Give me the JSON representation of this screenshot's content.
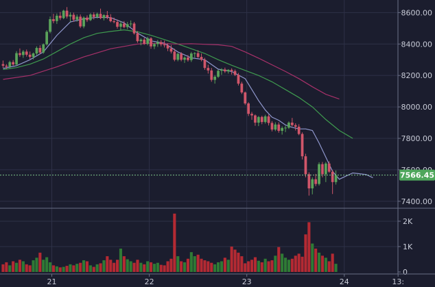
{
  "colors": {
    "background": "#1b1d2e",
    "grid": "#2e3147",
    "axis": "#6a6f86",
    "bull": "#5aa35a",
    "bear": "#d0566a",
    "bull_volume": "#2f7a35",
    "bear_volume": "#b42a33",
    "ma_fast": "#8f97cc",
    "ma_mid": "#3f9b4f",
    "ma_slow": "#a8316a",
    "last_price_bg": "#4ea65b",
    "last_price_line": "#7fc88a"
  },
  "chart_data": {
    "type": "candlestick",
    "price_axis": {
      "ylim": [
        7360,
        8680
      ],
      "ticks": [
        7400,
        7600,
        7800,
        8000,
        8200,
        8400,
        8600
      ],
      "tick_labels": [
        "7400.00",
        "7600.00",
        "7800.00",
        "8000.00",
        "8200.00",
        "8400.00",
        "8600.00"
      ]
    },
    "volume_axis": {
      "ylim": [
        0,
        2350
      ],
      "ticks": [
        0,
        1000,
        2000
      ],
      "tick_labels": [
        "0",
        "1K",
        "2K"
      ]
    },
    "time_axis": {
      "xlim": [
        0,
        118
      ],
      "ticks": [
        14.5,
        43.5,
        72.5,
        101.5,
        117.5
      ],
      "tick_labels": [
        "21",
        "22",
        "23",
        "24",
        "13:"
      ]
    },
    "last_price": {
      "value": 7566.45,
      "label": "7566.45"
    },
    "candles": [
      [
        8272,
        8295,
        8248,
        8262
      ],
      [
        8262,
        8272,
        8242,
        8256
      ],
      [
        8256,
        8294,
        8246,
        8285
      ],
      [
        8285,
        8298,
        8262,
        8270
      ],
      [
        8270,
        8355,
        8262,
        8342
      ],
      [
        8342,
        8372,
        8318,
        8330
      ],
      [
        8330,
        8362,
        8312,
        8352
      ],
      [
        8352,
        8365,
        8320,
        8332
      ],
      [
        8332,
        8352,
        8305,
        8318
      ],
      [
        8318,
        8346,
        8302,
        8340
      ],
      [
        8340,
        8385,
        8330,
        8375
      ],
      [
        8375,
        8392,
        8338,
        8346
      ],
      [
        8346,
        8404,
        8338,
        8398
      ],
      [
        8398,
        8488,
        8390,
        8478
      ],
      [
        8478,
        8575,
        8468,
        8558
      ],
      [
        8558,
        8592,
        8532,
        8546
      ],
      [
        8546,
        8594,
        8528,
        8580
      ],
      [
        8580,
        8604,
        8552,
        8565
      ],
      [
        8565,
        8618,
        8558,
        8612
      ],
      [
        8612,
        8635,
        8562,
        8575
      ],
      [
        8575,
        8602,
        8540,
        8586
      ],
      [
        8586,
        8600,
        8542,
        8555
      ],
      [
        8555,
        8588,
        8542,
        8574
      ],
      [
        8574,
        8588,
        8502,
        8512
      ],
      [
        8512,
        8576,
        8500,
        8568
      ],
      [
        8568,
        8582,
        8540,
        8552
      ],
      [
        8552,
        8596,
        8546,
        8588
      ],
      [
        8588,
        8602,
        8556,
        8572
      ],
      [
        8572,
        8600,
        8562,
        8592
      ],
      [
        8592,
        8625,
        8558,
        8565
      ],
      [
        8565,
        8590,
        8550,
        8584
      ],
      [
        8584,
        8610,
        8558,
        8570
      ],
      [
        8570,
        8590,
        8538,
        8545
      ],
      [
        8545,
        8568,
        8532,
        8540
      ],
      [
        8540,
        8556,
        8498,
        8510
      ],
      [
        8510,
        8544,
        8488,
        8530
      ],
      [
        8530,
        8546,
        8500,
        8508
      ],
      [
        8508,
        8540,
        8494,
        8526
      ],
      [
        8526,
        8550,
        8510,
        8530
      ],
      [
        8530,
        8540,
        8460,
        8468
      ],
      [
        8468,
        8482,
        8408,
        8418
      ],
      [
        8418,
        8436,
        8392,
        8428
      ],
      [
        8428,
        8440,
        8395,
        8402
      ],
      [
        8402,
        8446,
        8392,
        8436
      ],
      [
        8436,
        8444,
        8370,
        8385
      ],
      [
        8385,
        8408,
        8368,
        8400
      ],
      [
        8400,
        8426,
        8382,
        8412
      ],
      [
        8412,
        8425,
        8385,
        8398
      ],
      [
        8398,
        8422,
        8378,
        8392
      ],
      [
        8392,
        8405,
        8355,
        8372
      ],
      [
        8372,
        8394,
        8340,
        8352
      ],
      [
        8352,
        8370,
        8290,
        8300
      ],
      [
        8300,
        8344,
        8290,
        8338
      ],
      [
        8338,
        8348,
        8290,
        8300
      ],
      [
        8300,
        8322,
        8280,
        8314
      ],
      [
        8314,
        8330,
        8288,
        8298
      ],
      [
        8298,
        8350,
        8286,
        8340
      ],
      [
        8340,
        8348,
        8314,
        8342
      ],
      [
        8342,
        8360,
        8310,
        8318
      ],
      [
        8318,
        8340,
        8290,
        8300
      ],
      [
        8300,
        8312,
        8236,
        8248
      ],
      [
        8248,
        8268,
        8212,
        8232
      ],
      [
        8232,
        8248,
        8160,
        8172
      ],
      [
        8172,
        8202,
        8148,
        8192
      ],
      [
        8192,
        8238,
        8184,
        8230
      ],
      [
        8230,
        8246,
        8204,
        8238
      ],
      [
        8238,
        8250,
        8216,
        8226
      ],
      [
        8226,
        8240,
        8212,
        8236
      ],
      [
        8236,
        8246,
        8206,
        8228
      ],
      [
        8228,
        8238,
        8196,
        8204
      ],
      [
        8204,
        8216,
        8136,
        8148
      ],
      [
        8148,
        8160,
        8082,
        8092
      ],
      [
        8092,
        8098,
        8012,
        8022
      ],
      [
        8022,
        8030,
        7942,
        7956
      ],
      [
        7956,
        7968,
        7918,
        7946
      ],
      [
        7946,
        7952,
        7880,
        7900
      ],
      [
        7900,
        7942,
        7878,
        7936
      ],
      [
        7936,
        7944,
        7890,
        7904
      ],
      [
        7904,
        7950,
        7894,
        7940
      ],
      [
        7940,
        7952,
        7882,
        7898
      ],
      [
        7898,
        7910,
        7844,
        7856
      ],
      [
        7856,
        7902,
        7846,
        7888
      ],
      [
        7888,
        7902,
        7836,
        7848
      ],
      [
        7848,
        7876,
        7824,
        7866
      ],
      [
        7866,
        7880,
        7840,
        7868
      ],
      [
        7868,
        7908,
        7860,
        7900
      ],
      [
        7900,
        7930,
        7876,
        7884
      ],
      [
        7884,
        7896,
        7850,
        7874
      ],
      [
        7874,
        7890,
        7820,
        7828
      ],
      [
        7828,
        7838,
        7666,
        7686
      ],
      [
        7686,
        7702,
        7552,
        7572
      ],
      [
        7572,
        7584,
        7436,
        7482
      ],
      [
        7482,
        7552,
        7444,
        7540
      ],
      [
        7540,
        7574,
        7496,
        7510
      ],
      [
        7510,
        7648,
        7500,
        7636
      ],
      [
        7636,
        7650,
        7552,
        7572
      ],
      [
        7572,
        7650,
        7522,
        7640
      ],
      [
        7640,
        7654,
        7580,
        7588
      ],
      [
        7588,
        7600,
        7446,
        7522
      ],
      [
        7522,
        7596,
        7506,
        7566.45
      ]
    ],
    "volume": [
      300,
      380,
      260,
      420,
      360,
      480,
      420,
      300,
      260,
      460,
      560,
      760,
      480,
      580,
      380,
      260,
      220,
      180,
      200,
      240,
      300,
      260,
      320,
      360,
      460,
      420,
      260,
      200,
      300,
      340,
      460,
      620,
      480,
      360,
      480,
      920,
      620,
      500,
      420,
      360,
      480,
      360,
      300,
      420,
      380,
      320,
      360,
      280,
      260,
      420,
      520,
      2300,
      620,
      420,
      380,
      520,
      780,
      620,
      680,
      520,
      460,
      420,
      360,
      300,
      380,
      420,
      560,
      480,
      1000,
      880,
      760,
      620,
      340,
      420,
      480,
      580,
      440,
      380,
      520,
      420,
      460,
      640,
      980,
      720,
      560,
      480,
      520,
      640,
      720,
      600,
      1480,
      1960,
      1120,
      920,
      760,
      640,
      560,
      420,
      720,
      320
    ],
    "ma_fast": [
      [
        0,
        8245
      ],
      [
        4,
        8262
      ],
      [
        8,
        8300
      ],
      [
        12,
        8350
      ],
      [
        16,
        8455
      ],
      [
        20,
        8540
      ],
      [
        24,
        8560
      ],
      [
        28,
        8570
      ],
      [
        32,
        8568
      ],
      [
        36,
        8535
      ],
      [
        40,
        8470
      ],
      [
        44,
        8420
      ],
      [
        48,
        8405
      ],
      [
        52,
        8350
      ],
      [
        56,
        8312
      ],
      [
        60,
        8300
      ],
      [
        64,
        8240
      ],
      [
        68,
        8225
      ],
      [
        72,
        8180
      ],
      [
        74,
        8110
      ],
      [
        76,
        8040
      ],
      [
        78,
        7980
      ],
      [
        80,
        7935
      ],
      [
        82,
        7915
      ],
      [
        84,
        7885
      ],
      [
        86,
        7870
      ],
      [
        88,
        7860
      ],
      [
        90,
        7860
      ],
      [
        92,
        7850
      ],
      [
        94,
        7770
      ],
      [
        96,
        7680
      ],
      [
        98,
        7590
      ],
      [
        100,
        7540
      ],
      [
        102,
        7560
      ],
      [
        104,
        7580
      ],
      [
        106,
        7575
      ],
      [
        108,
        7570
      ],
      [
        110,
        7550
      ]
    ],
    "ma_mid": [
      [
        0,
        8238
      ],
      [
        4,
        8250
      ],
      [
        8,
        8272
      ],
      [
        12,
        8305
      ],
      [
        16,
        8352
      ],
      [
        20,
        8400
      ],
      [
        24,
        8440
      ],
      [
        28,
        8468
      ],
      [
        32,
        8480
      ],
      [
        36,
        8490
      ],
      [
        40,
        8478
      ],
      [
        44,
        8455
      ],
      [
        48,
        8428
      ],
      [
        52,
        8400
      ],
      [
        56,
        8370
      ],
      [
        60,
        8340
      ],
      [
        64,
        8300
      ],
      [
        68,
        8265
      ],
      [
        72,
        8232
      ],
      [
        76,
        8200
      ],
      [
        80,
        8160
      ],
      [
        84,
        8110
      ],
      [
        88,
        8060
      ],
      [
        92,
        8000
      ],
      [
        96,
        7920
      ],
      [
        100,
        7850
      ],
      [
        104,
        7800
      ]
    ],
    "ma_slow": [
      [
        0,
        8175
      ],
      [
        8,
        8200
      ],
      [
        16,
        8255
      ],
      [
        24,
        8318
      ],
      [
        32,
        8370
      ],
      [
        40,
        8400
      ],
      [
        44,
        8405
      ],
      [
        48,
        8402
      ],
      [
        52,
        8400
      ],
      [
        56,
        8402
      ],
      [
        60,
        8398
      ],
      [
        64,
        8395
      ],
      [
        68,
        8385
      ],
      [
        72,
        8350
      ],
      [
        76,
        8310
      ],
      [
        80,
        8268
      ],
      [
        84,
        8225
      ],
      [
        88,
        8180
      ],
      [
        92,
        8128
      ],
      [
        96,
        8080
      ],
      [
        100,
        8050
      ]
    ]
  }
}
